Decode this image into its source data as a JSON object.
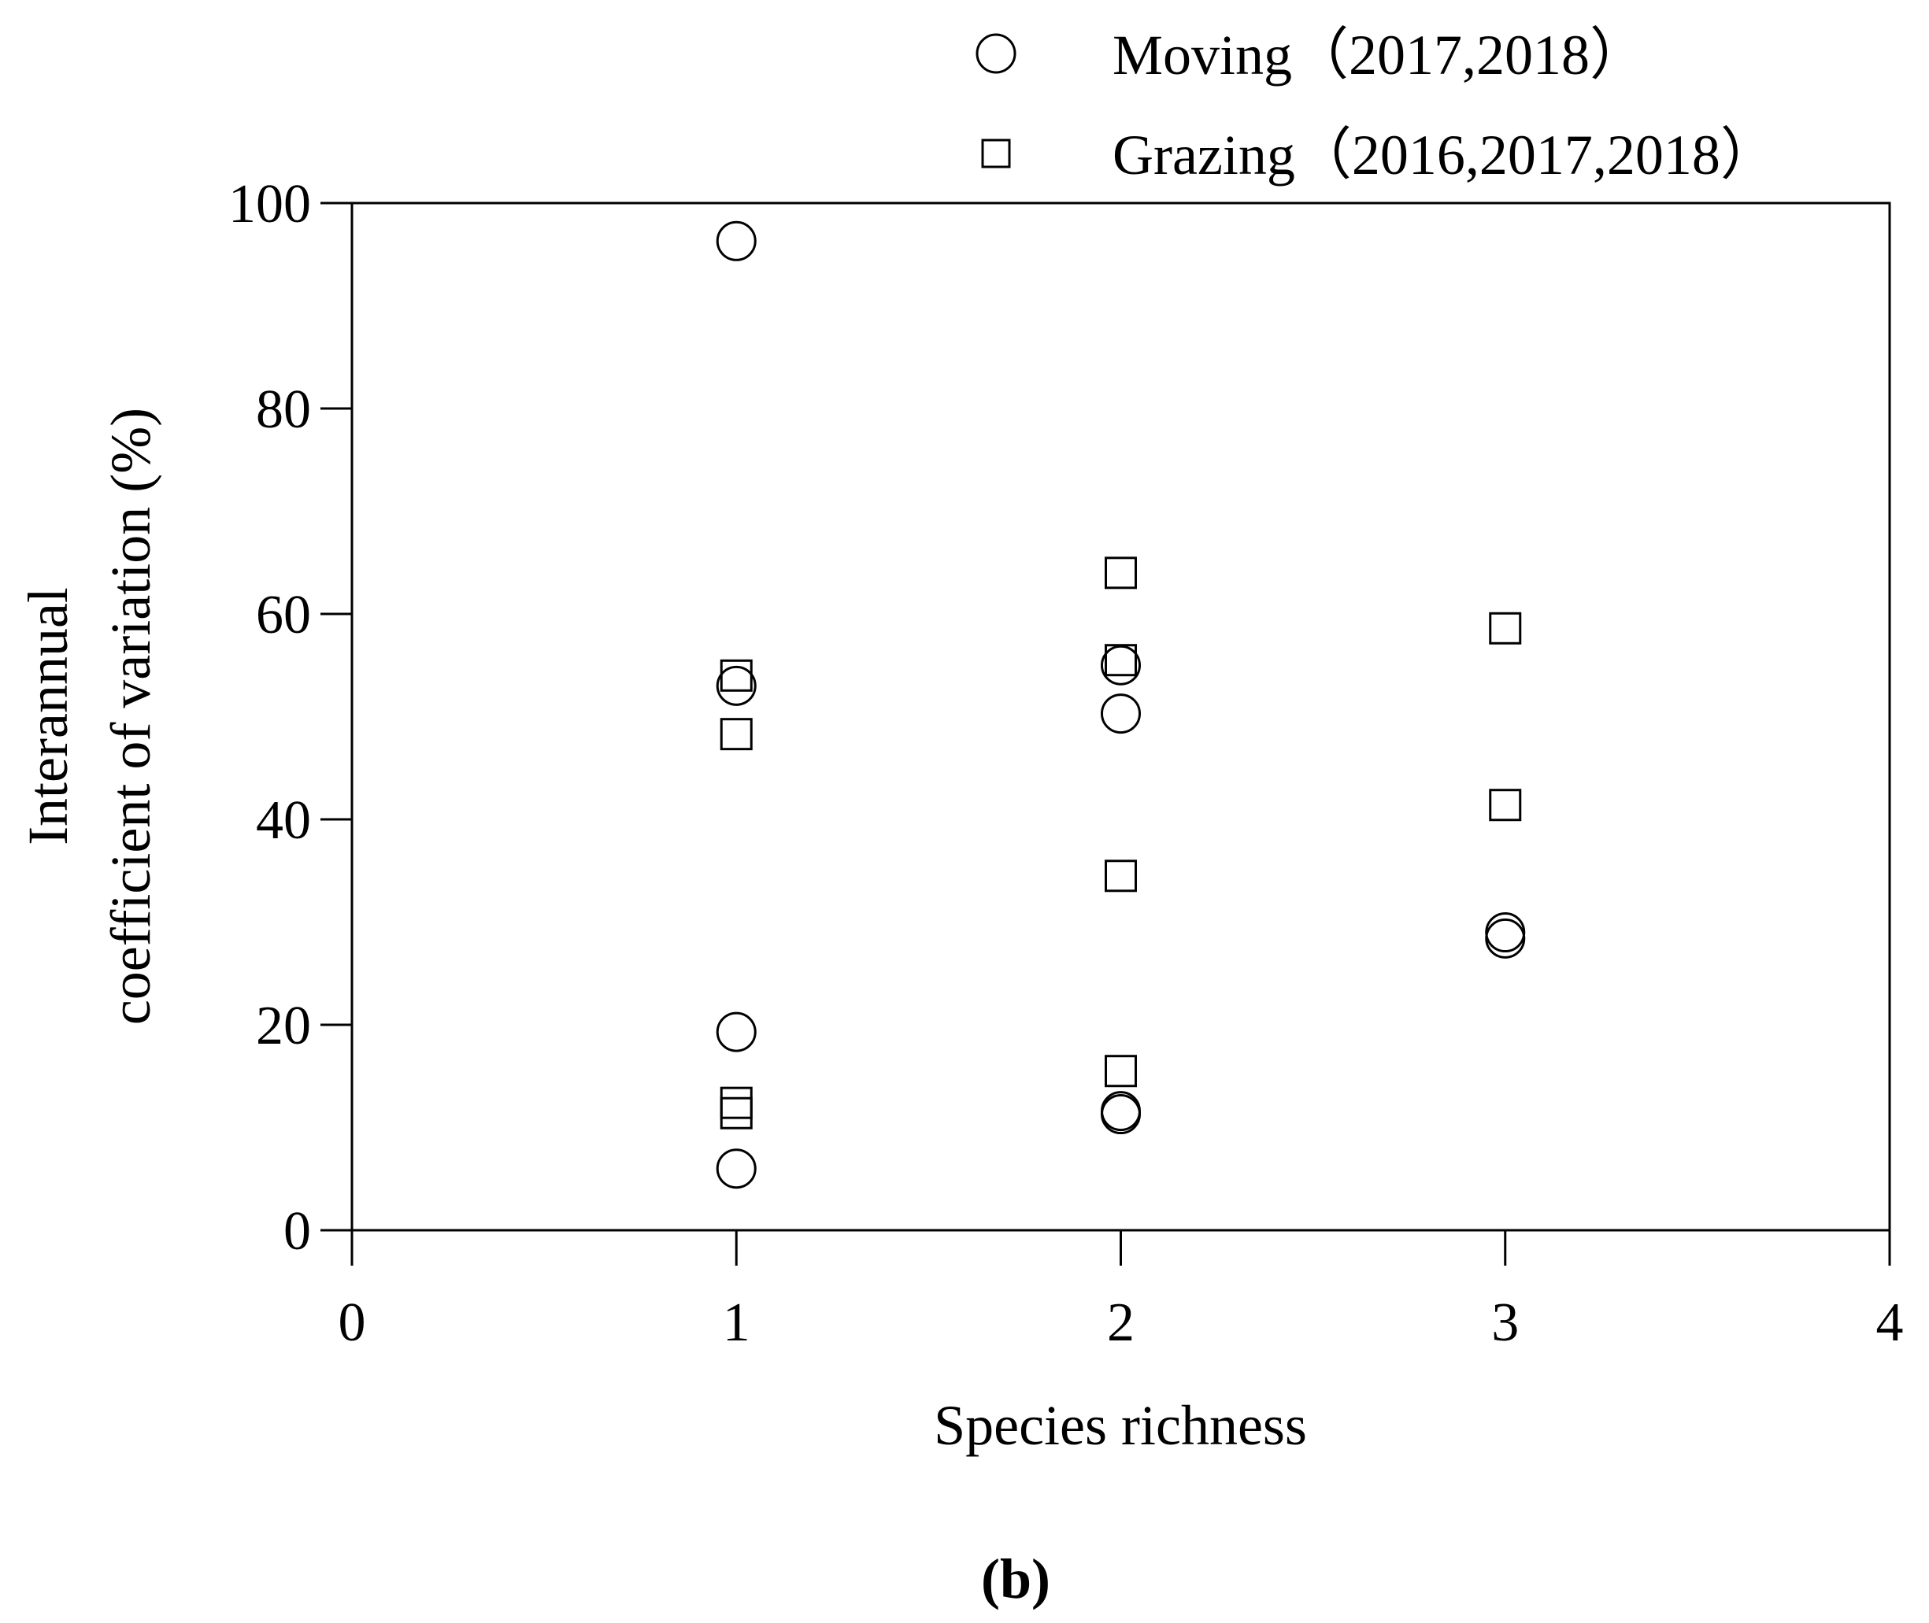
{
  "chart_data": {
    "type": "scatter",
    "xlabel": "Species richness",
    "ylabel_line1": "Interannual",
    "ylabel_line2": "coefficient of variation (%)",
    "xlim": [
      0,
      4
    ],
    "ylim": [
      0,
      100
    ],
    "xticks": [
      0,
      1,
      2,
      3,
      4
    ],
    "yticks": [
      0,
      20,
      40,
      60,
      80,
      100
    ],
    "grid": false,
    "legend_position": "top-right",
    "panel_label": "(b)",
    "series": [
      {
        "name": "Moving（2017,2018）",
        "marker": "circle",
        "color": "#000000",
        "points": [
          {
            "x": 1,
            "y": 96.3
          },
          {
            "x": 1,
            "y": 53.0
          },
          {
            "x": 1,
            "y": 19.3
          },
          {
            "x": 1,
            "y": 6.0
          },
          {
            "x": 2,
            "y": 55.0
          },
          {
            "x": 2,
            "y": 50.3
          },
          {
            "x": 2,
            "y": 11.6
          },
          {
            "x": 2,
            "y": 11.3
          },
          {
            "x": 3,
            "y": 29.0
          },
          {
            "x": 3,
            "y": 28.4
          }
        ]
      },
      {
        "name": "Grazing（2016,2017,2018）",
        "marker": "square",
        "color": "#000000",
        "points": [
          {
            "x": 1,
            "y": 54.0
          },
          {
            "x": 1,
            "y": 48.3
          },
          {
            "x": 1,
            "y": 12.4
          },
          {
            "x": 1,
            "y": 11.4
          },
          {
            "x": 2,
            "y": 64.0
          },
          {
            "x": 2,
            "y": 55.5
          },
          {
            "x": 2,
            "y": 34.5
          },
          {
            "x": 2,
            "y": 15.5
          },
          {
            "x": 3,
            "y": 58.6
          },
          {
            "x": 3,
            "y": 41.4
          }
        ]
      }
    ]
  }
}
